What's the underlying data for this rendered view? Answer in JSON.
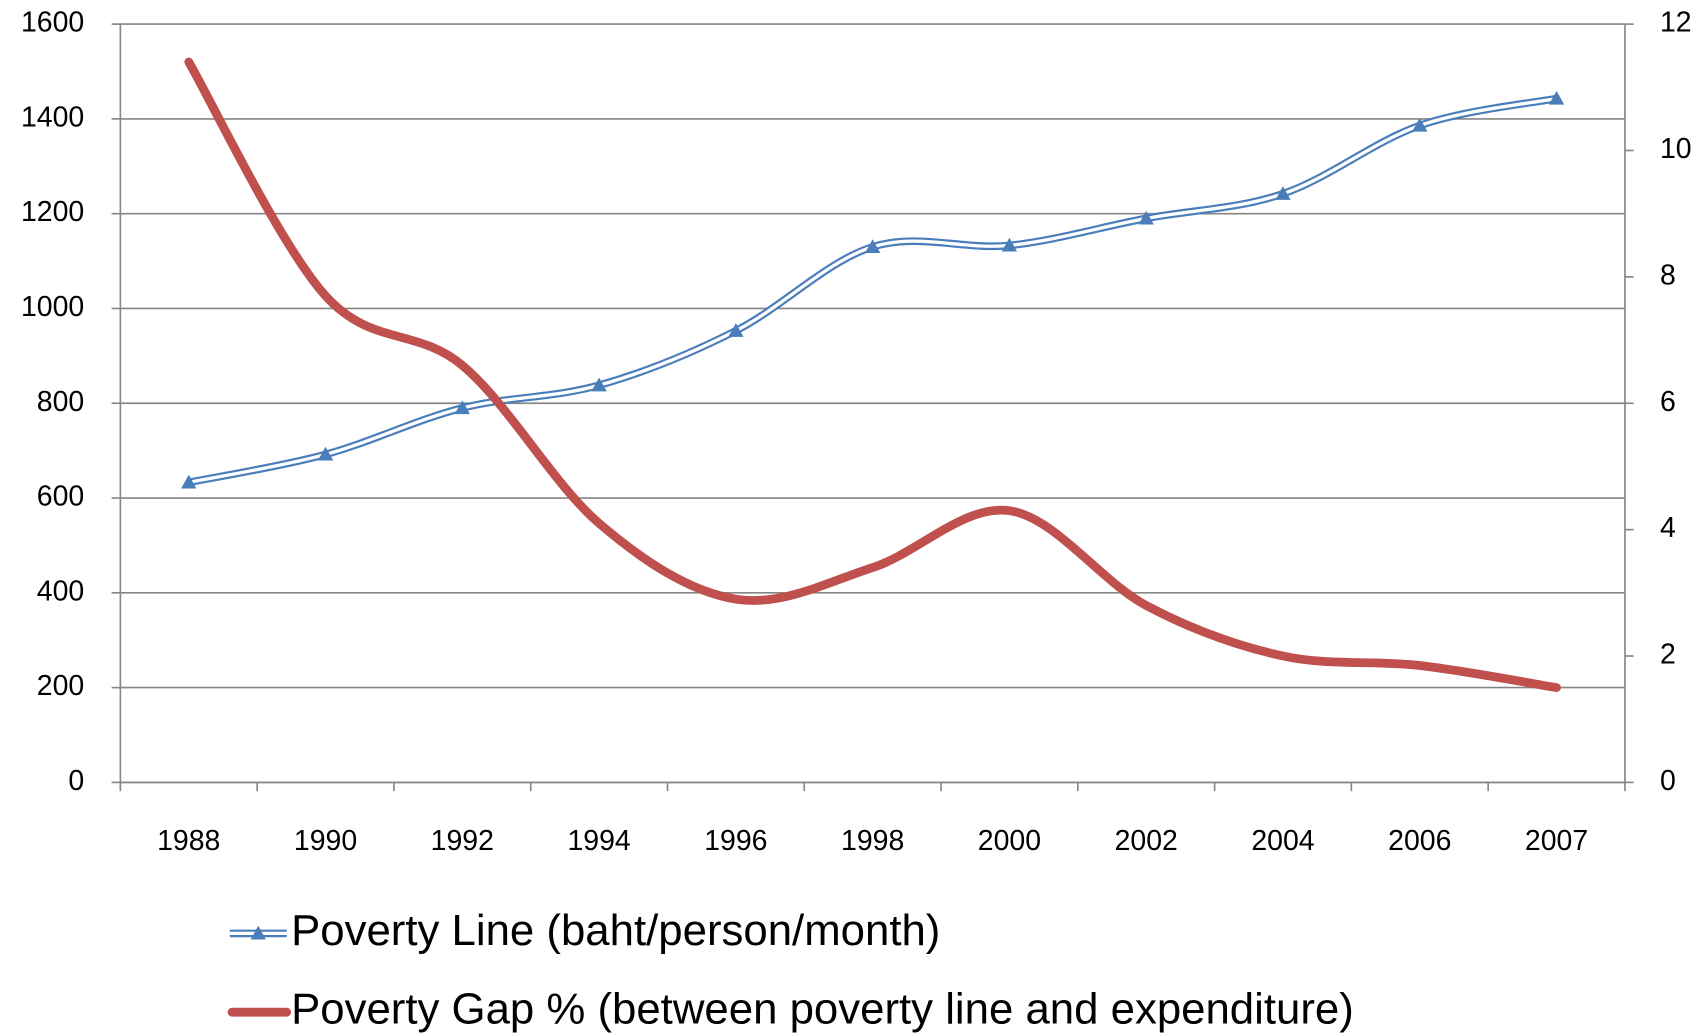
{
  "chart_data": {
    "type": "line",
    "categories": [
      "1988",
      "1990",
      "1992",
      "1994",
      "1996",
      "1998",
      "2000",
      "2002",
      "2004",
      "2006",
      "2007"
    ],
    "series": [
      {
        "name": "Poverty Line (baht/person/month)",
        "color": "#4a7ebb",
        "values": [
          633,
          692,
          790,
          838,
          953,
          1130,
          1133,
          1190,
          1242,
          1386,
          1443
        ]
      },
      {
        "name": "Poverty Gap % (between poverty line and expenditure)",
        "color": "#c0504d",
        "axis": "y2",
        "values": [
          11.4,
          7.7,
          6.6,
          4.1,
          2.9,
          3.4,
          4.3,
          2.8,
          2.0,
          1.85,
          1.5
        ]
      }
    ],
    "ylim": [
      0,
      1600
    ],
    "yticks": [
      0,
      200,
      400,
      600,
      800,
      1000,
      1200,
      1400,
      1600
    ],
    "y2lim": [
      0,
      12
    ],
    "y2ticks": [
      0,
      2,
      4,
      6,
      8,
      10,
      12
    ],
    "grid": true,
    "legend": "bottom"
  }
}
